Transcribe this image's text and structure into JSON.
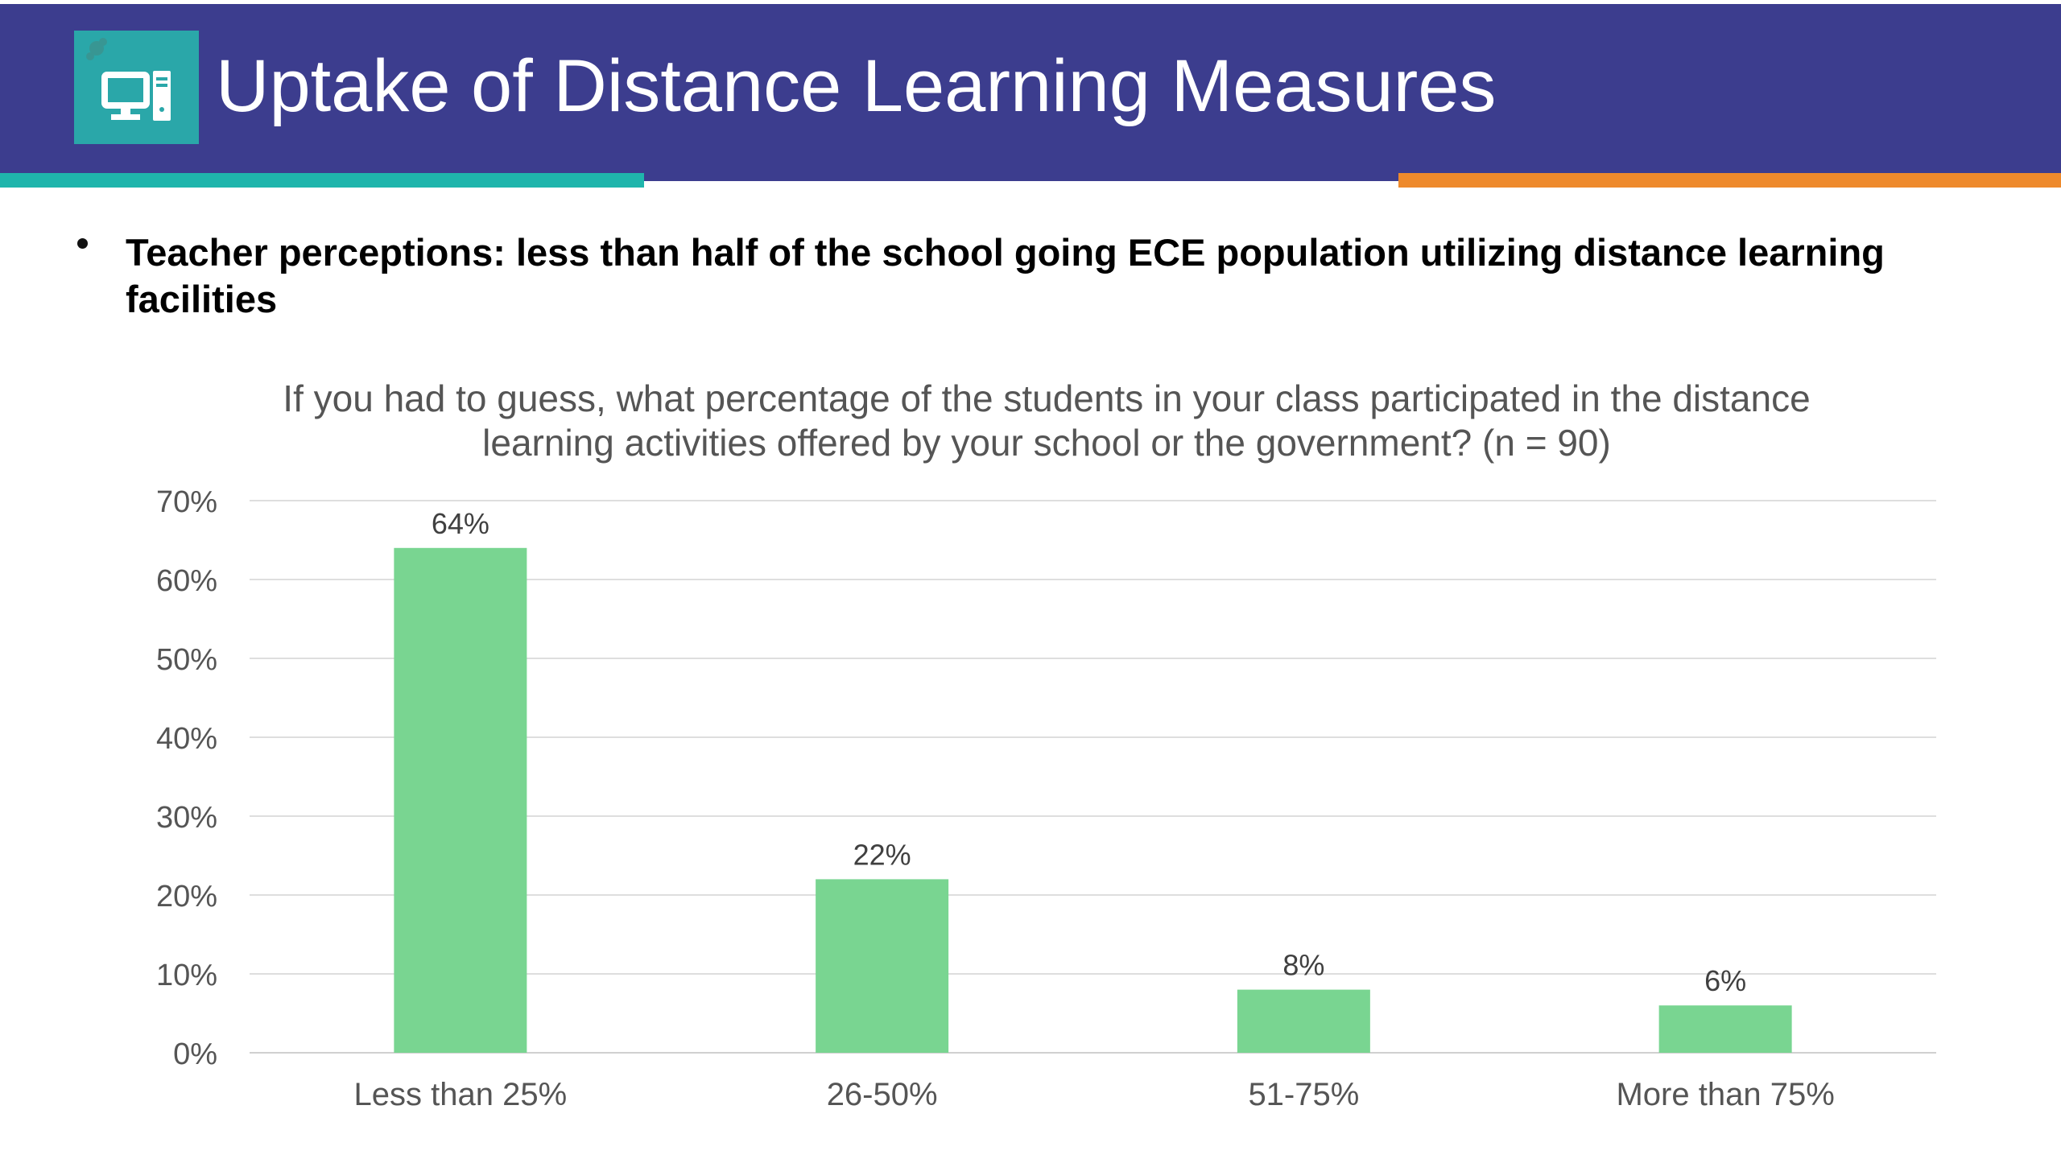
{
  "slide": {
    "title": "Uptake of Distance Learning Measures",
    "logo_icon": "desktop-computer-icon",
    "bullet": "Teacher perceptions: less than half of the school going ECE population utilizing distance learning facilities"
  },
  "colors": {
    "header_bg": "#3c3d8e",
    "accent_teal": "#1fb5ac",
    "accent_orange": "#ee8a2c",
    "bar": "#79d591"
  },
  "chart_data": {
    "type": "bar",
    "title": "If you had to guess, what percentage of the students in your class participated in the distance learning activities offered by your school or the government? (n = 90)",
    "categories": [
      "Less than 25%",
      "26-50%",
      "51-75%",
      "More than 75%"
    ],
    "values": [
      64,
      22,
      8,
      6
    ],
    "data_labels": [
      "64%",
      "22%",
      "8%",
      "6%"
    ],
    "yticks": [
      "0%",
      "10%",
      "20%",
      "30%",
      "40%",
      "50%",
      "60%",
      "70%"
    ],
    "ylim": [
      0,
      70
    ],
    "xlabel": "",
    "ylabel": "",
    "grid": true
  }
}
